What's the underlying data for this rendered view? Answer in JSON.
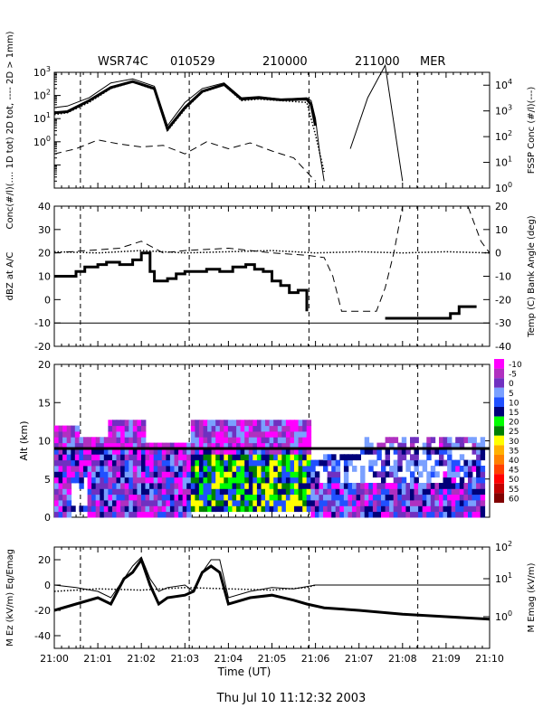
{
  "header": {
    "aircraft": "WSR74C",
    "date_code": "010529",
    "start_code": "210000",
    "end_code": "211000",
    "site": "MER"
  },
  "footer": {
    "timestamp": "Thu Jul 10 11:12:32 2003"
  },
  "colors": {
    "line": "#000000",
    "background": "#ffffff"
  },
  "chart_data": [
    {
      "type": "line",
      "panel": "concentration",
      "ylabel_left": "Conc(#/l)(.... 1D tot) 2D tot, ---- 2D > 1mm)",
      "ylabel_right": "FSSP Conc (#/l)(---)",
      "yscale": "log",
      "ylim": [
        0.01,
        1000
      ],
      "yticks": [
        "10^-2",
        "10^-1",
        "10^0",
        "10^1",
        "10^2",
        "10^3"
      ],
      "yticks_right": [
        "10^0",
        "10^1",
        "10^2",
        "10^3",
        "10^4"
      ],
      "xlim": [
        0,
        10
      ],
      "vlines": [
        0.6,
        3.1,
        5.85,
        8.35
      ],
      "series": [
        {
          "style": "solid-thin",
          "x": [
            0,
            0.3,
            0.8,
            1.3,
            1.8,
            2.3,
            2.6,
            3.0,
            3.4,
            3.9,
            4.3,
            4.7,
            5.2,
            5.8,
            5.9,
            6.0,
            6.1,
            6.2
          ],
          "y": [
            30,
            35,
            80,
            350,
            520,
            250,
            5,
            50,
            200,
            350,
            80,
            90,
            70,
            80,
            60,
            10,
            0.3,
            0.02
          ]
        },
        {
          "style": "solid-thick",
          "x": [
            0,
            0.3,
            0.8,
            1.3,
            1.8,
            2.3,
            2.6,
            3.0,
            3.4,
            3.9,
            4.3,
            4.7,
            5.2,
            5.8,
            5.9,
            6.0
          ],
          "y": [
            18,
            20,
            60,
            220,
            400,
            200,
            3.5,
            30,
            150,
            300,
            70,
            80,
            65,
            70,
            40,
            5
          ]
        },
        {
          "style": "dotted",
          "x": [
            0,
            0.3,
            0.8,
            1.3,
            1.8,
            2.3,
            2.6,
            3.0,
            3.4,
            3.9,
            4.3,
            4.7,
            5.2,
            5.8,
            6.0,
            6.2
          ],
          "y": [
            15,
            18,
            50,
            200,
            380,
            180,
            3,
            25,
            140,
            280,
            60,
            70,
            60,
            50,
            2,
            0.05
          ]
        },
        {
          "style": "dashed",
          "x": [
            0,
            0.5,
            1.0,
            1.5,
            2.0,
            2.5,
            3.0,
            3.5,
            4.0,
            4.5,
            5.0,
            5.5,
            5.8,
            6.0
          ],
          "y": [
            0.3,
            0.5,
            1.2,
            0.8,
            0.6,
            0.7,
            0.3,
            1.0,
            0.5,
            0.9,
            0.4,
            0.2,
            0.05,
            0.02
          ]
        },
        {
          "style": "solid-thin-fssp",
          "x": [
            6.8,
            7.2,
            7.6,
            8.0
          ],
          "y": [
            0.5,
            80,
            2000,
            0.02
          ]
        }
      ]
    },
    {
      "type": "line",
      "panel": "dbz",
      "ylabel_left": "dBZ at A/C",
      "ylabel_right": "Temp (C) Bank Angle (deg)",
      "ylim": [
        -20,
        40
      ],
      "yticks": [
        -20,
        -10,
        0,
        10,
        20,
        30,
        40
      ],
      "yticks_right": [
        -40,
        -30,
        -20,
        -10,
        0,
        10,
        20
      ],
      "xlim": [
        0,
        10
      ],
      "vlines": [
        0.6,
        3.1,
        5.85,
        8.35
      ],
      "series": [
        {
          "style": "step-thick",
          "x": [
            0,
            0.2,
            0.5,
            0.7,
            1.0,
            1.2,
            1.5,
            1.8,
            2.0,
            2.2,
            2.3,
            2.6,
            2.8,
            3.0,
            3.2,
            3.5,
            3.8,
            4.1,
            4.4,
            4.6,
            4.8,
            5.0,
            5.2,
            5.4,
            5.6,
            5.8
          ],
          "y": [
            10,
            10,
            12,
            14,
            15,
            16,
            15,
            17,
            20,
            12,
            8,
            9,
            11,
            12,
            12,
            13,
            12,
            14,
            15,
            13,
            12,
            8,
            6,
            3,
            4,
            -5
          ]
        },
        {
          "style": "dotted",
          "x": [
            0,
            1,
            2,
            3,
            4,
            5,
            6,
            7,
            8,
            9,
            10
          ],
          "y": [
            20.5,
            20,
            21,
            20,
            20.5,
            21,
            20,
            20.5,
            20,
            20.5,
            20
          ]
        },
        {
          "style": "solid-thin",
          "x": [
            0,
            10
          ],
          "y": [
            -10,
            -10
          ]
        },
        {
          "style": "dashed",
          "x": [
            0,
            1.5,
            2.0,
            2.5,
            3.0,
            4.0,
            5.0,
            5.8,
            6.2,
            6.4,
            6.6,
            7.0,
            7.4,
            7.6,
            7.8,
            8.0,
            9.5,
            9.8,
            10
          ],
          "y": [
            20,
            22,
            25,
            20,
            21,
            22,
            20,
            19,
            18,
            10,
            -5,
            -5,
            -5,
            5,
            20,
            40,
            40,
            25,
            20
          ]
        },
        {
          "style": "step-thick-b",
          "x": [
            7.6,
            7.7,
            9.1,
            9.3,
            9.6,
            9.7
          ],
          "y": [
            -8,
            -8,
            -6,
            -3,
            -3,
            -3
          ]
        }
      ]
    },
    {
      "type": "heatmap",
      "panel": "altitude",
      "ylabel": "Alt (km)",
      "ylim": [
        0,
        20
      ],
      "yticks": [
        0,
        5,
        10,
        15,
        20
      ],
      "xlim": [
        0,
        10
      ],
      "vlines": [
        0.6,
        3.1,
        5.85,
        8.35
      ],
      "hline": 9.0,
      "legend": [
        "-10",
        "-5",
        "0",
        "5",
        "10",
        "15",
        "20",
        "25",
        "30",
        "35",
        "40",
        "45",
        "50",
        "55",
        "60"
      ],
      "legend_colors": [
        "#ff00ff",
        "#b030c0",
        "#7030c0",
        "#7aa0ff",
        "#2050ff",
        "#00007a",
        "#00ff00",
        "#008000",
        "#ffff00",
        "#ffb000",
        "#ff8000",
        "#ff4000",
        "#ff0000",
        "#c00000",
        "#800000"
      ]
    },
    {
      "type": "line",
      "panel": "efield",
      "ylabel_left": "M Ez (kV/m) Eq/Emag",
      "ylabel_right": "M Emag (kV/m)",
      "ylim": [
        -50,
        30
      ],
      "yticks": [
        -40,
        -20,
        0,
        20
      ],
      "yticks_right": [
        "10^0",
        "10^1",
        "10^2"
      ],
      "xlim": [
        0,
        10
      ],
      "vlines": [
        0.6,
        3.1,
        5.85,
        8.35
      ],
      "series": [
        {
          "style": "solid-thin",
          "x": [
            0,
            0.5,
            1.0,
            1.3,
            1.6,
            1.8,
            2.0,
            2.2,
            2.4,
            2.6,
            3.0,
            3.2,
            3.4,
            3.6,
            3.8,
            4.0,
            4.5,
            5.0,
            5.5,
            6.0,
            8.0,
            10.0
          ],
          "y": [
            0,
            -2,
            -5,
            -10,
            5,
            15,
            22,
            5,
            -5,
            -2,
            0,
            -5,
            10,
            20,
            20,
            -10,
            -5,
            -2,
            -3,
            0,
            0,
            0
          ]
        },
        {
          "style": "solid-thick",
          "x": [
            0,
            0.5,
            1.0,
            1.3,
            1.6,
            1.8,
            2.0,
            2.2,
            2.4,
            2.6,
            3.0,
            3.2,
            3.4,
            3.6,
            3.8,
            4.0,
            4.5,
            5.0,
            5.5,
            5.8,
            6.2,
            7.0,
            8.0,
            9.0,
            10.0
          ],
          "y": [
            -20,
            -15,
            -10,
            -15,
            5,
            10,
            20,
            0,
            -15,
            -10,
            -8,
            -5,
            10,
            15,
            10,
            -15,
            -10,
            -8,
            -12,
            -15,
            -18,
            -20,
            -23,
            -25,
            -27
          ]
        },
        {
          "style": "dotted",
          "x": [
            0,
            1,
            2,
            3,
            4,
            5,
            5.8,
            6.0
          ],
          "y": [
            -5,
            -3,
            -4,
            -2,
            -3,
            -4,
            -2,
            0
          ]
        }
      ]
    }
  ],
  "x_axis": {
    "label": "Time (UT)",
    "ticks": [
      "21:00",
      "21:01",
      "21:02",
      "21:03",
      "21:04",
      "21:05",
      "21:06",
      "21:07",
      "21:08",
      "21:09",
      "21:10"
    ]
  }
}
